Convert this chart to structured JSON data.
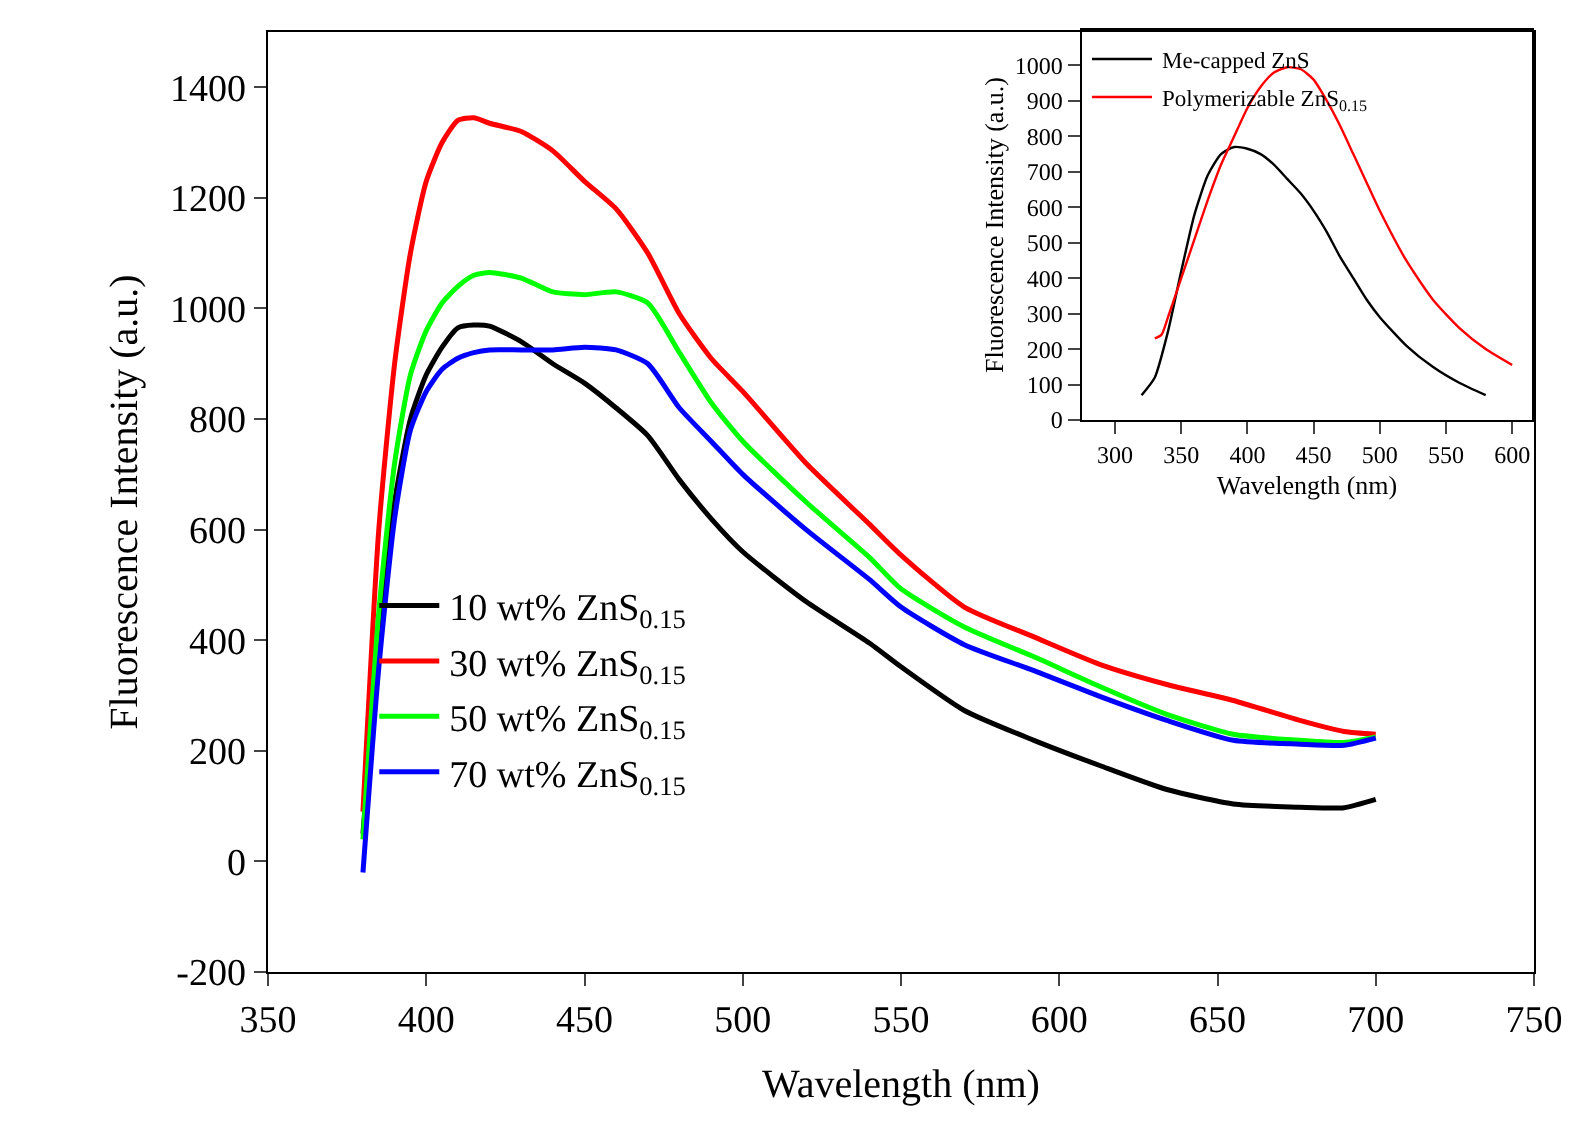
{
  "chart_data": [
    {
      "type": "line",
      "xlabel": "Wavelength (nm)",
      "ylabel": "Fluorescence Intensity (a.u.)",
      "xlim": [
        350,
        750
      ],
      "ylim": [
        -200,
        1500
      ],
      "xticks": [
        350,
        400,
        450,
        500,
        550,
        600,
        650,
        700,
        750
      ],
      "yticks": [
        -200,
        0,
        200,
        400,
        600,
        800,
        1000,
        1200,
        1400
      ],
      "legend": "bottom left",
      "x": [
        380,
        385,
        390,
        395,
        400,
        405,
        410,
        415,
        420,
        430,
        440,
        450,
        460,
        470,
        480,
        490,
        500,
        520,
        540,
        550,
        570,
        592,
        613,
        634,
        655,
        676,
        690,
        700
      ],
      "series": [
        {
          "name": "10 wt% ZnS$_{0.15}$",
          "color": "#000000",
          "values": [
            50,
            400,
            650,
            800,
            880,
            930,
            965,
            970,
            968,
            940,
            900,
            865,
            820,
            770,
            690,
            620,
            560,
            470,
            395,
            352,
            273,
            219,
            173,
            130,
            104,
            98,
            97,
            112
          ]
        },
        {
          "name": "30 wt% ZnS$_{0.15}$",
          "color": "#ff0000",
          "values": [
            90,
            600,
            900,
            1100,
            1230,
            1300,
            1340,
            1345,
            1335,
            1320,
            1285,
            1230,
            1180,
            1100,
            990,
            910,
            850,
            720,
            610,
            554,
            460,
            406,
            356,
            320,
            291,
            255,
            235,
            230
          ]
        },
        {
          "name": "50 wt% ZnS$_{0.15}$",
          "color": "#00ff00",
          "values": [
            40,
            450,
            720,
            880,
            960,
            1010,
            1040,
            1060,
            1065,
            1055,
            1030,
            1025,
            1030,
            1010,
            920,
            830,
            760,
            650,
            550,
            493,
            424,
            370,
            316,
            266,
            230,
            219,
            215,
            225
          ]
        },
        {
          "name": "70 wt% ZnS$_{0.15}$",
          "color": "#0000ff",
          "values": [
            -20,
            350,
            620,
            780,
            850,
            890,
            910,
            920,
            925,
            925,
            925,
            930,
            925,
            900,
            820,
            760,
            700,
            600,
            510,
            460,
            392,
            345,
            298,
            255,
            219,
            212,
            210,
            223
          ]
        }
      ]
    },
    {
      "type": "line",
      "xlabel": "Wavelength (nm)",
      "ylabel": "Fluorescence Intensity (a.u.)",
      "xlim": [
        275,
        615
      ],
      "ylim": [
        0,
        1100
      ],
      "xticks": [
        300,
        350,
        400,
        450,
        500,
        550,
        600
      ],
      "yticks": [
        0,
        100,
        200,
        300,
        400,
        500,
        600,
        700,
        800,
        900,
        1000
      ],
      "legend": "top left",
      "series": [
        {
          "name": "Me-capped ZnS",
          "color": "#000000",
          "x": [
            320,
            330,
            340,
            350,
            360,
            370,
            380,
            390,
            400,
            410,
            420,
            430,
            440,
            450,
            460,
            470,
            480,
            490,
            500,
            520,
            540,
            560,
            580
          ],
          "values": [
            70,
            120,
            250,
            420,
            580,
            690,
            750,
            770,
            765,
            750,
            720,
            680,
            640,
            590,
            530,
            460,
            400,
            340,
            290,
            210,
            150,
            105,
            70
          ]
        },
        {
          "name": "Polymerizable ZnS$_{0.15}$",
          "color": "#ff0000",
          "x": [
            330,
            335,
            340,
            350,
            360,
            370,
            380,
            390,
            400,
            410,
            420,
            430,
            440,
            450,
            460,
            470,
            480,
            490,
            500,
            520,
            540,
            560,
            580,
            600
          ],
          "values": [
            230,
            240,
            290,
            400,
            510,
            620,
            720,
            800,
            880,
            940,
            980,
            995,
            990,
            960,
            900,
            830,
            750,
            670,
            590,
            450,
            340,
            260,
            200,
            155
          ]
        }
      ]
    }
  ]
}
